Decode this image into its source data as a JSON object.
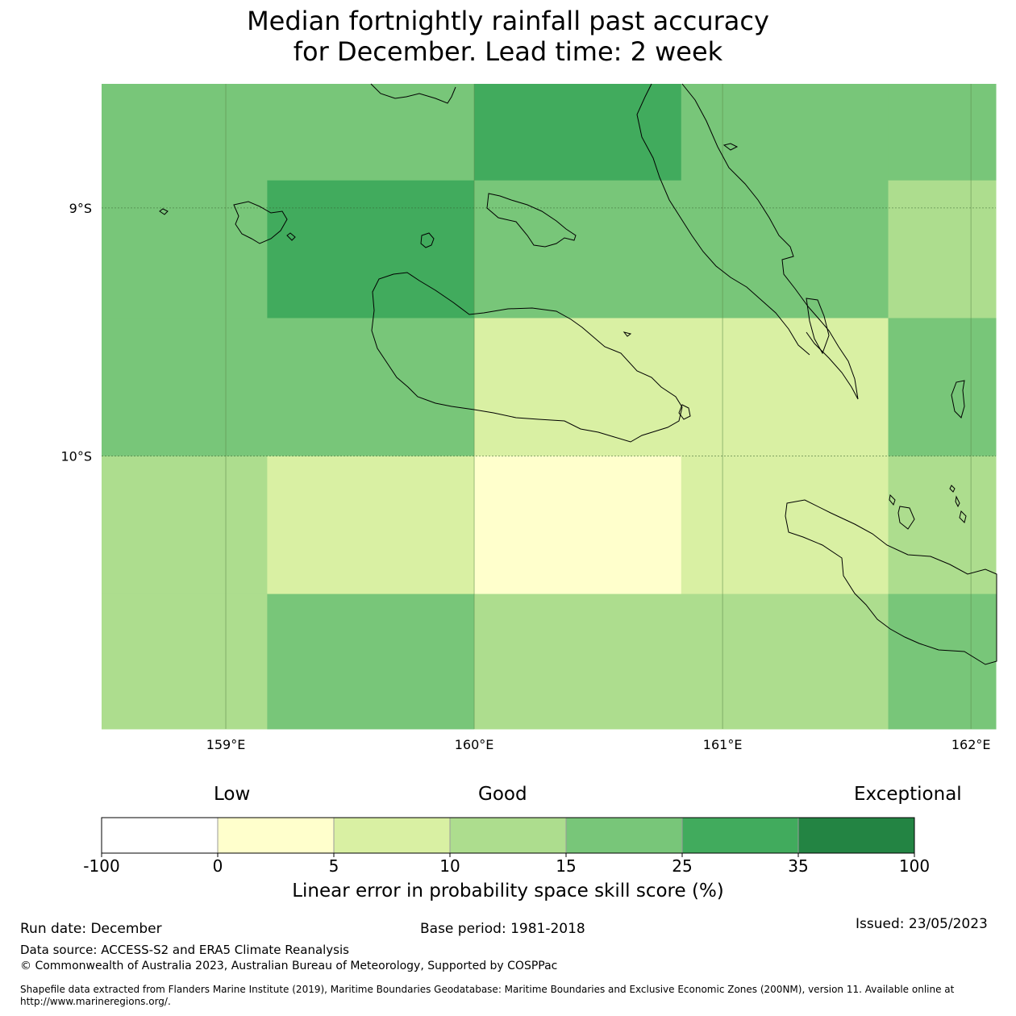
{
  "chart_data": {
    "type": "heatmap",
    "title_line1": "Median fortnightly rainfall past accuracy",
    "title_line2": "for December. Lead time: 2 week",
    "x_ticks": [
      {
        "value": 159,
        "label": "159°E"
      },
      {
        "value": 160,
        "label": "160°E"
      },
      {
        "value": 161,
        "label": "161°E"
      },
      {
        "value": 162,
        "label": "162°E"
      }
    ],
    "y_ticks": [
      {
        "value": -9,
        "label": "9°S"
      },
      {
        "value": -10,
        "label": "10°S"
      }
    ],
    "xlim": [
      158.5,
      162.1
    ],
    "ylim": [
      -11.1,
      -8.5
    ],
    "cell_lon_edges": [
      158.5,
      159.1667,
      160.0,
      160.8333,
      161.6667,
      162.1
    ],
    "cell_lat_edges": [
      -8.5,
      -8.889,
      -9.444,
      -10.0,
      -10.556,
      -11.1
    ],
    "grid_classes": [
      [
        3,
        3,
        4,
        3,
        3
      ],
      [
        3,
        4,
        3,
        3,
        2
      ],
      [
        3,
        3,
        1,
        1,
        3
      ],
      [
        2,
        1,
        0,
        1,
        2
      ],
      [
        2,
        3,
        2,
        2,
        3
      ]
    ],
    "legend": {
      "categories": [
        "Low",
        "Good",
        "Exceptional"
      ],
      "boundaries": [
        "-100",
        "0",
        "5",
        "10",
        "15",
        "25",
        "35",
        "100"
      ],
      "colors": [
        "#ffffff",
        "#ffffcc",
        "#d9f0a3",
        "#addd8e",
        "#78c679",
        "#41ab5d",
        "#238443"
      ],
      "label": "Linear error in probability space skill score (%)"
    }
  },
  "footer": {
    "run_date": "Run date: December",
    "base_period": "Base period: 1981-2018",
    "issued": "Issued: 23/05/2023",
    "data_source": "Data source: ACCESS-S2 and ERA5 Climate Reanalysis",
    "copyright": "© Commonwealth of Australia 2023, Australian Bureau of Meteorology, Supported by COSPPac",
    "shapefile": "Shapefile data extracted from Flanders Marine Institute (2019), Maritime Boundaries Geodatabase: Maritime Boundaries and Exclusive Economic Zones (200NM), version 11. Available online at http://www.marineregions.org/."
  }
}
